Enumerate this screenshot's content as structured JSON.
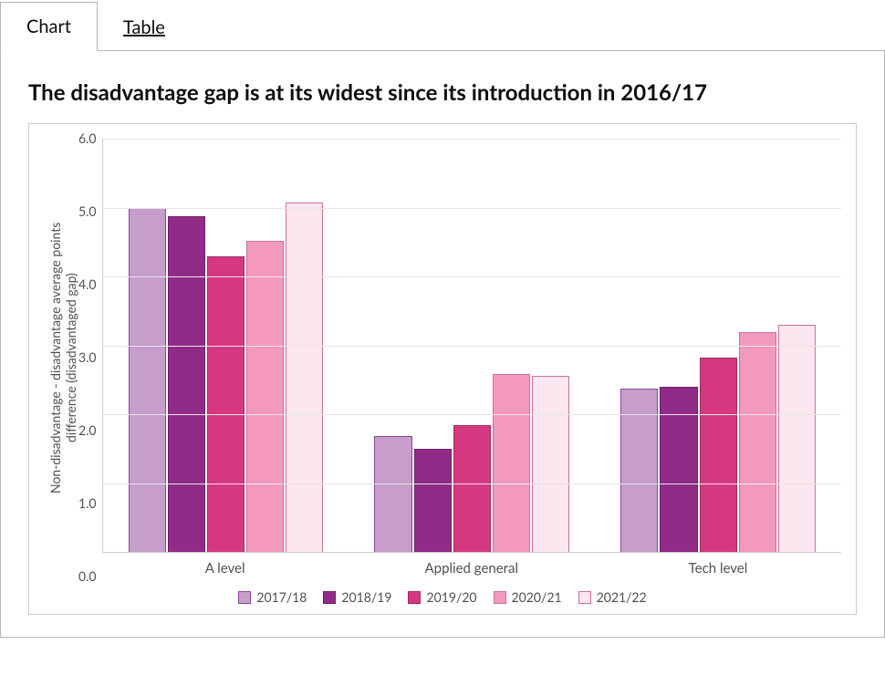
{
  "tabs": {
    "chart": "Chart",
    "table": "Table"
  },
  "chart": {
    "type": "bar",
    "title": "The disadvantage gap is at its widest since its introduction in 2016/17",
    "ylabel": "Non-disadvantage - disadvantage average points\ndifference (disadvantaged gap)",
    "ylim": [
      0,
      6
    ],
    "ytick_step": 1.0,
    "yticks": [
      "0.0",
      "1.0",
      "2.0",
      "3.0",
      "4.0",
      "5.0",
      "6.0"
    ],
    "categories": [
      "A level",
      "Applied general",
      "Tech level"
    ],
    "series": [
      {
        "name": "2017/18",
        "fill": "#c79dcb",
        "border": "#8c4799",
        "values": [
          5.0,
          1.68,
          2.38
        ]
      },
      {
        "name": "2018/19",
        "fill": "#912b88",
        "border": "#6d2066",
        "values": [
          4.88,
          1.5,
          2.4
        ]
      },
      {
        "name": "2019/20",
        "fill": "#d53880",
        "border": "#a02a60",
        "values": [
          4.3,
          1.84,
          2.82
        ]
      },
      {
        "name": "2020/21",
        "fill": "#f499be",
        "border": "#c9709a",
        "values": [
          4.52,
          2.58,
          3.2
        ]
      },
      {
        "name": "2021/22",
        "fill": "#fce6ef",
        "border": "#c9709a",
        "values": [
          5.08,
          2.56,
          3.3
        ]
      }
    ],
    "grid_color": "#e6e6e6",
    "axis_color": "#cccccc",
    "background_color": "#ffffff",
    "label_fontsize": 14,
    "tick_fontsize": 14,
    "title_fontsize": 24
  }
}
